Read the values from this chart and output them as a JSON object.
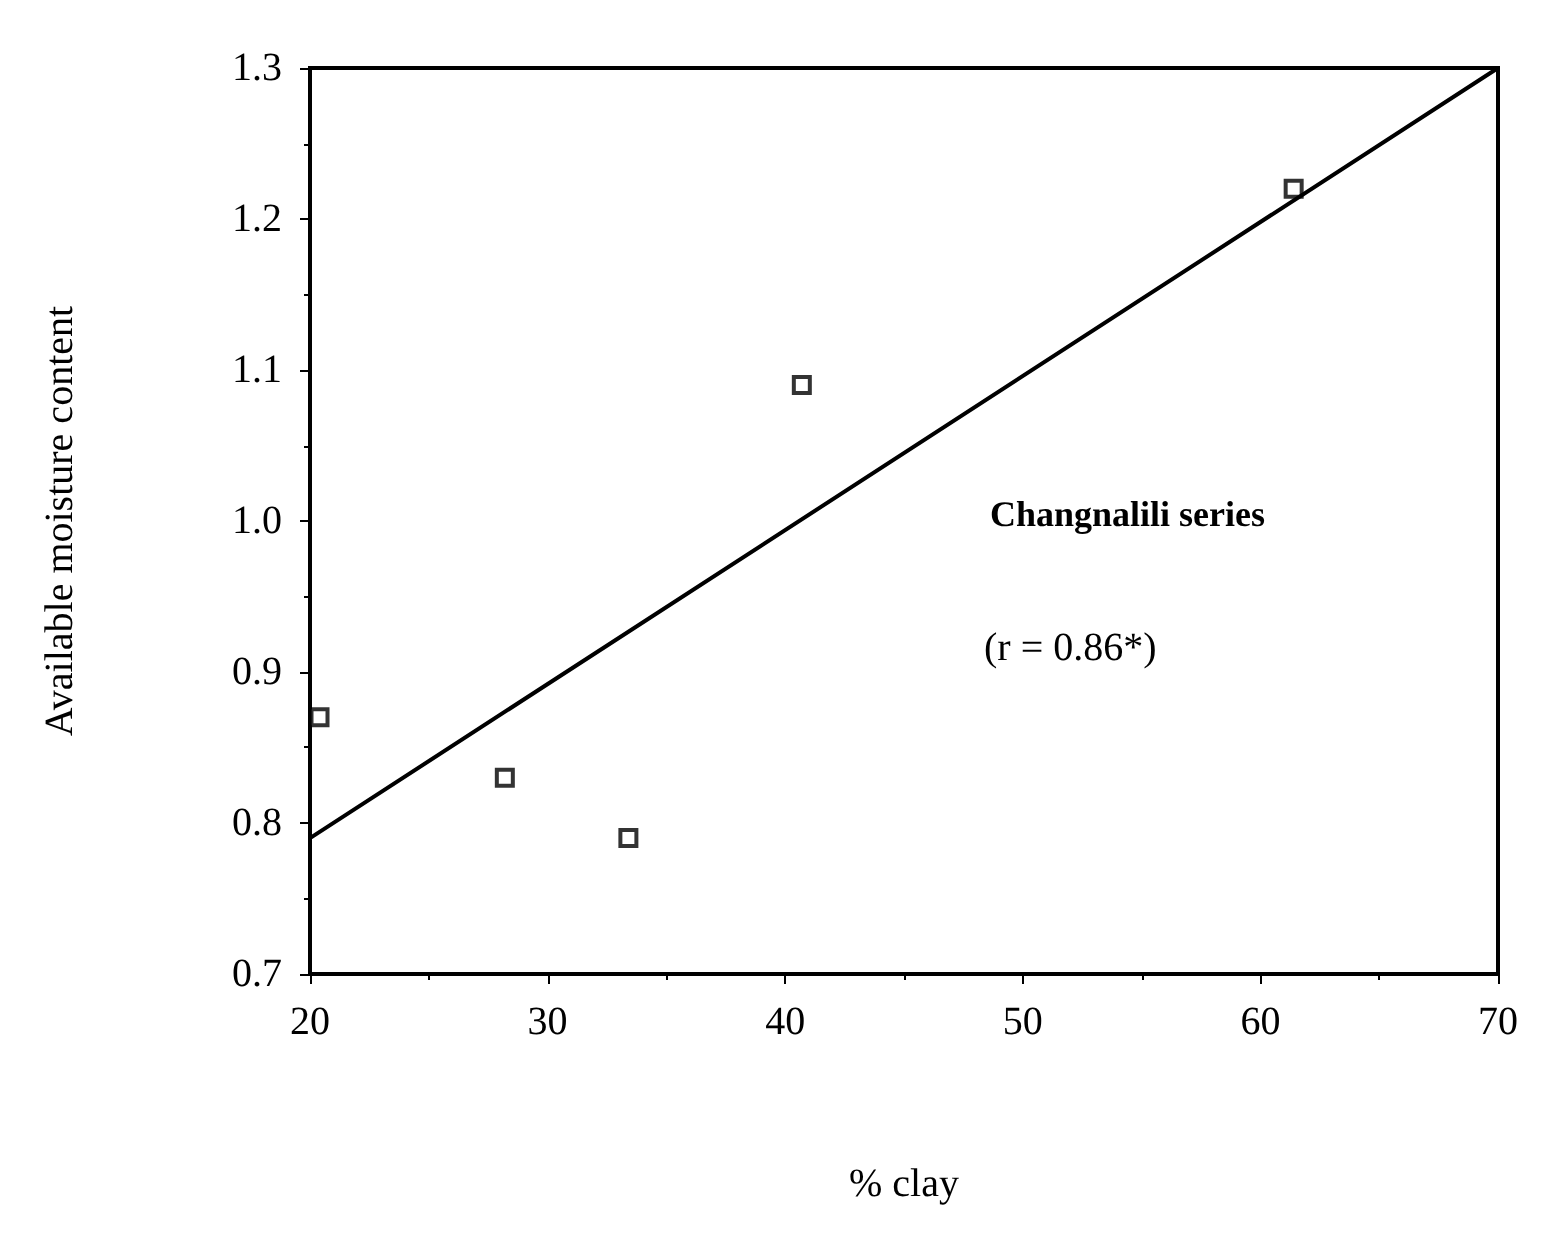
{
  "chart_data": {
    "type": "scatter",
    "xlabel": "% clay",
    "ylabel": "Available moisture content",
    "annotations": [
      "Changnalili series",
      "(r = 0.86*)"
    ],
    "series": [
      {
        "color": "#000000",
        "marker": "square",
        "x": [
          20.4,
          28.2,
          33.4,
          40.7,
          61.4
        ],
        "values": [
          0.87,
          0.83,
          0.79,
          1.09,
          1.22
        ]
      },
      {
        "type": "line",
        "color": "#000000",
        "marker": "none",
        "line_style": "solid",
        "x": [
          20,
          70
        ],
        "values": [
          0.79,
          1.3
        ]
      }
    ],
    "xlim": [
      20,
      70
    ],
    "xticks": [
      20,
      30,
      40,
      50,
      60,
      70
    ],
    "ylim": [
      0.7,
      1.3
    ],
    "yticks": [
      0.7,
      0.8,
      0.9,
      {
        "value": 1,
        "label": "1.0"
      },
      1.1,
      1.2,
      1.3
    ],
    "grid": false
  }
}
